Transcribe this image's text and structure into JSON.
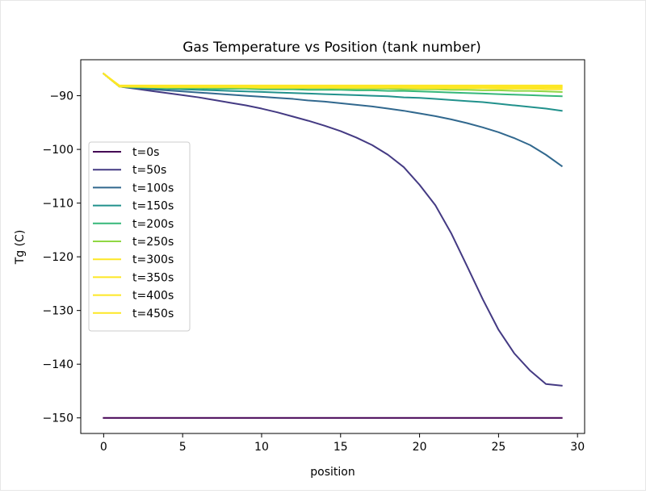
{
  "chart_data": {
    "type": "line",
    "title": "Gas Temperature vs Position (tank number)",
    "xlabel": "position",
    "ylabel": "Tg (C)",
    "xlim": [
      -1.45,
      30.45
    ],
    "ylim": [
      -152.9,
      -83.3
    ],
    "xticks": [
      "0",
      "5",
      "10",
      "15",
      "20",
      "25",
      "30"
    ],
    "xtick_values": [
      0,
      5,
      10,
      15,
      20,
      25,
      30
    ],
    "yticks": [
      "−90",
      "−100",
      "−110",
      "−120",
      "−130",
      "−140",
      "−150"
    ],
    "ytick_values": [
      -90,
      -100,
      -110,
      -120,
      -130,
      -140,
      -150
    ],
    "grid": false,
    "legend_position": "center-left",
    "x": [
      0,
      1,
      2,
      3,
      4,
      5,
      6,
      7,
      8,
      9,
      10,
      11,
      12,
      13,
      14,
      15,
      16,
      17,
      18,
      19,
      20,
      21,
      22,
      23,
      24,
      25,
      26,
      27,
      28,
      29
    ],
    "series": [
      {
        "name": "t=0s",
        "color": "#440154",
        "values": [
          -150,
          -150,
          -150,
          -150,
          -150,
          -150,
          -150,
          -150,
          -150,
          -150,
          -150,
          -150,
          -150,
          -150,
          -150,
          -150,
          -150,
          -150,
          -150,
          -150,
          -150,
          -150,
          -150,
          -150,
          -150,
          -150,
          -150,
          -150,
          -150,
          -150
        ]
      },
      {
        "name": "t=50s",
        "color": "#443a83",
        "values": [
          -85.9,
          -88.3,
          -88.7,
          -89.1,
          -89.5,
          -89.9,
          -90.3,
          -90.8,
          -91.3,
          -91.8,
          -92.4,
          -93.1,
          -93.9,
          -94.7,
          -95.6,
          -96.6,
          -97.8,
          -99.2,
          -101.0,
          -103.3,
          -106.6,
          -110.4,
          -115.6,
          -121.7,
          -127.9,
          -133.6,
          -138.0,
          -141.2,
          -143.7,
          -144.0
        ]
      },
      {
        "name": "t=100s",
        "color": "#31688e",
        "values": [
          -85.9,
          -88.3,
          -88.6,
          -88.8,
          -89.0,
          -89.2,
          -89.4,
          -89.6,
          -89.8,
          -90.0,
          -90.2,
          -90.4,
          -90.6,
          -90.9,
          -91.1,
          -91.4,
          -91.7,
          -92.0,
          -92.4,
          -92.8,
          -93.3,
          -93.8,
          -94.4,
          -95.1,
          -95.9,
          -96.8,
          -97.9,
          -99.2,
          -101.0,
          -103.1
        ]
      },
      {
        "name": "t=150s",
        "color": "#21918c",
        "values": [
          -85.9,
          -88.3,
          -88.5,
          -88.6,
          -88.7,
          -88.8,
          -88.9,
          -89.0,
          -89.1,
          -89.2,
          -89.3,
          -89.4,
          -89.5,
          -89.6,
          -89.7,
          -89.8,
          -89.9,
          -90.0,
          -90.1,
          -90.3,
          -90.4,
          -90.6,
          -90.8,
          -91.0,
          -91.2,
          -91.5,
          -91.8,
          -92.1,
          -92.4,
          -92.8
        ]
      },
      {
        "name": "t=200s",
        "color": "#35b779",
        "values": [
          -85.9,
          -88.3,
          -88.4,
          -88.5,
          -88.6,
          -88.6,
          -88.6,
          -88.7,
          -88.7,
          -88.7,
          -88.8,
          -88.8,
          -88.8,
          -88.9,
          -88.9,
          -88.9,
          -89.0,
          -89.0,
          -89.1,
          -89.1,
          -89.2,
          -89.3,
          -89.4,
          -89.5,
          -89.6,
          -89.7,
          -89.8,
          -89.9,
          -90.0,
          -90.1
        ]
      },
      {
        "name": "t=250s",
        "color": "#90d743",
        "values": [
          -85.9,
          -88.3,
          -88.4,
          -88.4,
          -88.5,
          -88.5,
          -88.5,
          -88.5,
          -88.5,
          -88.6,
          -88.6,
          -88.6,
          -88.6,
          -88.6,
          -88.6,
          -88.7,
          -88.7,
          -88.7,
          -88.7,
          -88.8,
          -88.8,
          -88.8,
          -88.9,
          -88.9,
          -89.0,
          -89.0,
          -89.1,
          -89.1,
          -89.2,
          -89.3
        ]
      },
      {
        "name": "t=300s",
        "color": "#fde725",
        "values": [
          -85.9,
          -88.3,
          -88.3,
          -88.4,
          -88.4,
          -88.4,
          -88.4,
          -88.4,
          -88.4,
          -88.4,
          -88.5,
          -88.5,
          -88.5,
          -88.5,
          -88.5,
          -88.5,
          -88.5,
          -88.5,
          -88.5,
          -88.5,
          -88.6,
          -88.6,
          -88.6,
          -88.6,
          -88.6,
          -88.7,
          -88.7,
          -88.7,
          -88.8,
          -88.8
        ]
      },
      {
        "name": "t=350s",
        "color": "#fde725",
        "values": [
          -85.9,
          -88.3,
          -88.3,
          -88.3,
          -88.3,
          -88.3,
          -88.3,
          -88.3,
          -88.3,
          -88.3,
          -88.3,
          -88.4,
          -88.4,
          -88.4,
          -88.4,
          -88.4,
          -88.4,
          -88.4,
          -88.4,
          -88.4,
          -88.4,
          -88.4,
          -88.4,
          -88.4,
          -88.4,
          -88.5,
          -88.5,
          -88.5,
          -88.5,
          -88.5
        ]
      },
      {
        "name": "t=400s",
        "color": "#fde725",
        "values": [
          -85.9,
          -88.2,
          -88.2,
          -88.2,
          -88.2,
          -88.2,
          -88.2,
          -88.2,
          -88.2,
          -88.2,
          -88.2,
          -88.2,
          -88.2,
          -88.2,
          -88.2,
          -88.2,
          -88.2,
          -88.2,
          -88.2,
          -88.2,
          -88.2,
          -88.3,
          -88.3,
          -88.3,
          -88.3,
          -88.3,
          -88.3,
          -88.3,
          -88.3,
          -88.3
        ]
      },
      {
        "name": "t=450s",
        "color": "#fde725",
        "values": [
          -85.9,
          -88.1,
          -88.1,
          -88.1,
          -88.1,
          -88.1,
          -88.1,
          -88.1,
          -88.1,
          -88.1,
          -88.1,
          -88.1,
          -88.1,
          -88.1,
          -88.1,
          -88.1,
          -88.1,
          -88.1,
          -88.1,
          -88.1,
          -88.1,
          -88.1,
          -88.1,
          -88.1,
          -88.1,
          -88.1,
          -88.1,
          -88.1,
          -88.1,
          -88.1
        ]
      }
    ]
  }
}
